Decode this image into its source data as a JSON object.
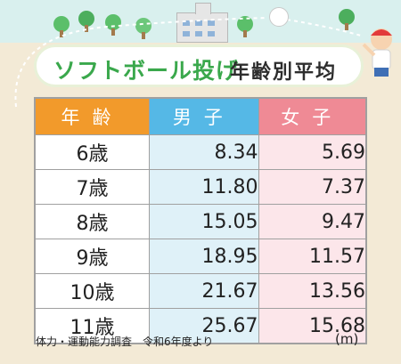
{
  "header": {
    "title": "ソフトボール投げ",
    "subtitle": "年齢別平均"
  },
  "chart_data": {
    "type": "table",
    "columns": [
      "年齢",
      "男子",
      "女子"
    ],
    "rows": [
      {
        "age": "6歳",
        "boys": "8.34",
        "girls": "5.69"
      },
      {
        "age": "7歳",
        "boys": "11.80",
        "girls": "7.37"
      },
      {
        "age": "8歳",
        "boys": "15.05",
        "girls": "9.47"
      },
      {
        "age": "9歳",
        "boys": "18.95",
        "girls": "11.57"
      },
      {
        "age": "10歳",
        "boys": "21.67",
        "girls": "13.56"
      },
      {
        "age": "11歳",
        "boys": "25.67",
        "girls": "15.68"
      }
    ],
    "unit": "(m)"
  },
  "footer": {
    "source": "体力・運動能力調査　令和6年度より"
  },
  "colors": {
    "age_header": "#f29a2b",
    "boys_header": "#55b8e6",
    "girls_header": "#ef8a95",
    "boys_cell": "#dff1f8",
    "girls_cell": "#fce6ea",
    "title_green": "#3aa84c"
  }
}
